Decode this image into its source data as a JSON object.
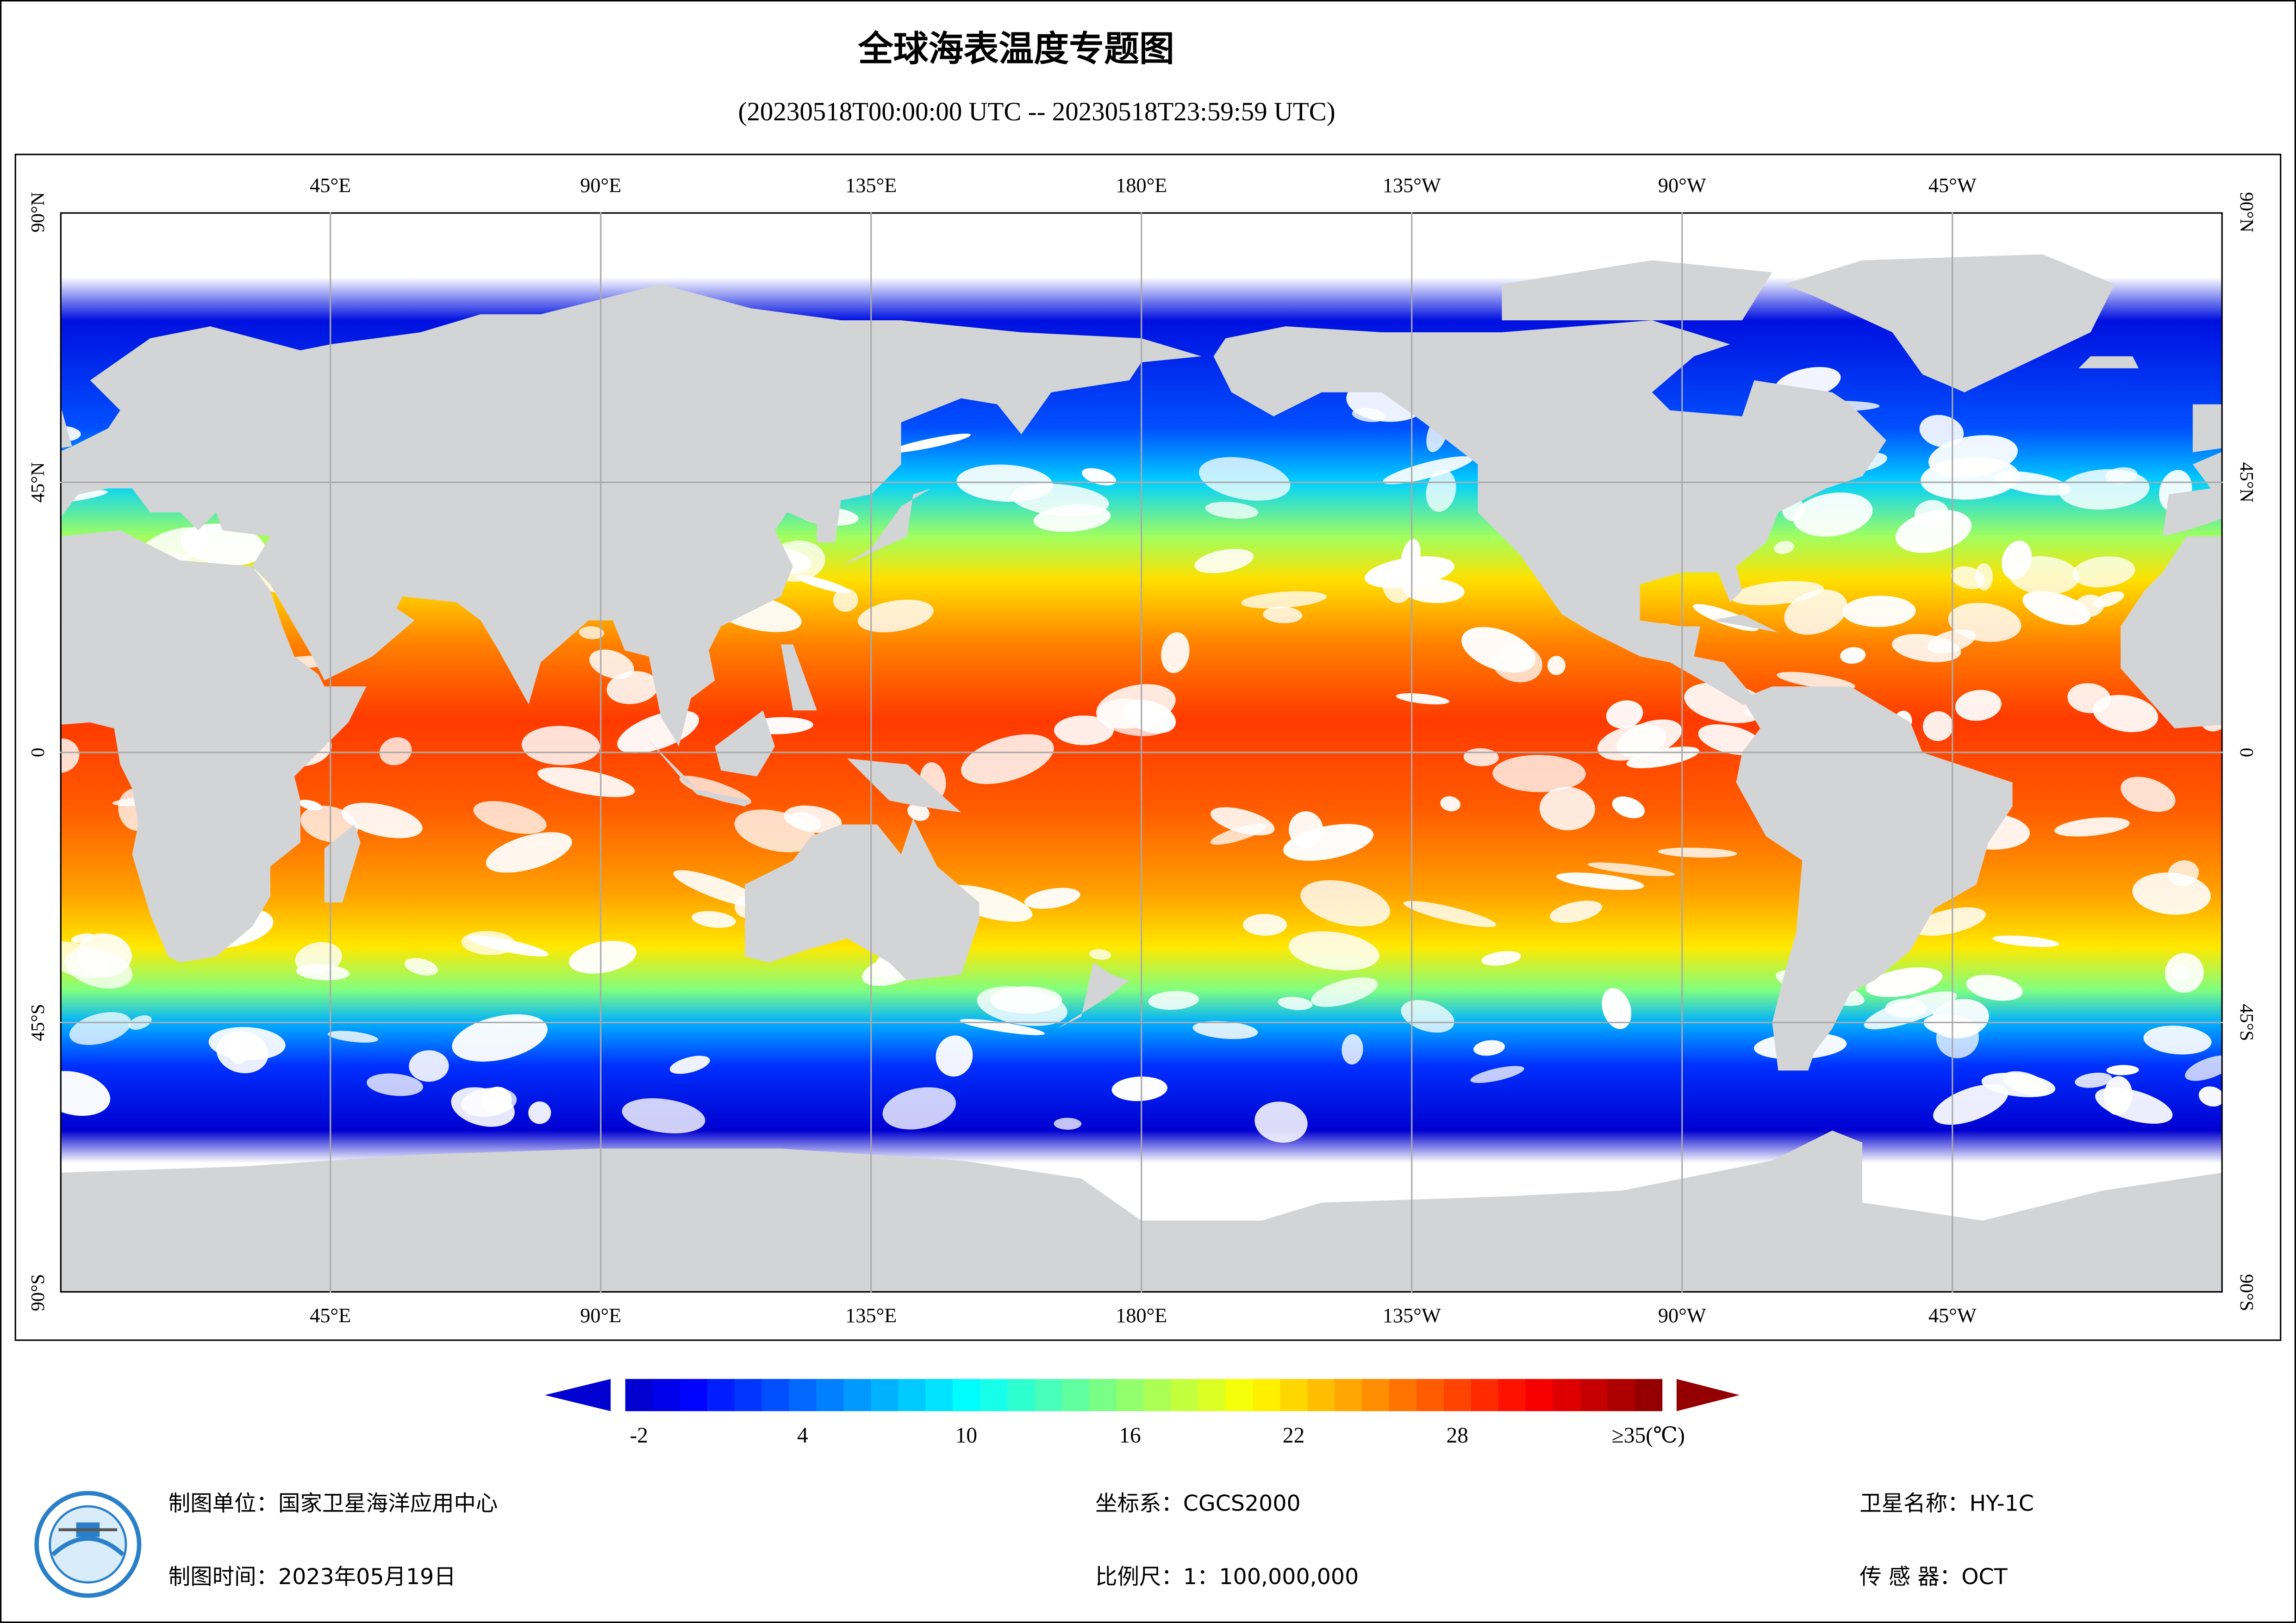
{
  "header": {
    "title": "全球海表温度专题图",
    "subtitle": "(20230518T00:00:00 UTC -- 20230518T23:59:59 UTC)"
  },
  "map": {
    "lon_labels": [
      "45°E",
      "90°E",
      "135°E",
      "180°E",
      "135°W",
      "90°W",
      "45°W"
    ],
    "lat_labels": [
      "90°N",
      "45°N",
      "0",
      "45°S",
      "90°S"
    ]
  },
  "colorbar": {
    "min": -2,
    "max": 35,
    "ticks": [
      -2,
      4,
      10,
      16,
      22,
      28
    ],
    "max_label": "≥35(℃)"
  },
  "footer": {
    "unit": "制图单位：国家卫星海洋应用中心",
    "time": "制图时间：2023年05月19日",
    "crs": "坐标系：CGCS2000",
    "scale": "比例尺：1：100,000,000",
    "satellite": "卫星名称：HY-1C",
    "sensor": "传 感 器：OCT"
  }
}
